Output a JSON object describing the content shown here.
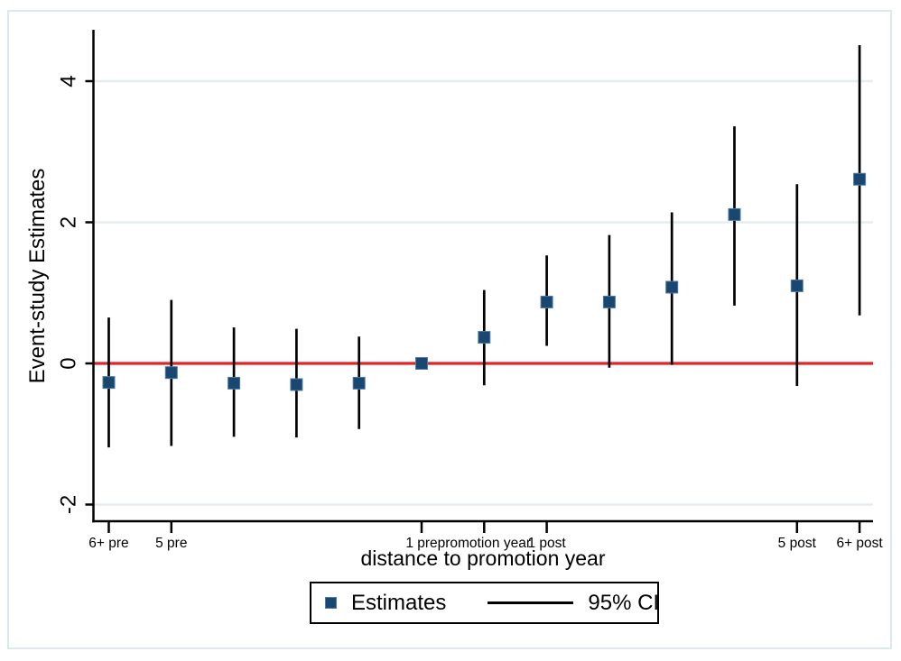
{
  "chart_data": {
    "type": "scatter",
    "title": "",
    "xlabel": "distance to promotion year",
    "ylabel": "Event-study Estimates",
    "ylim": [
      -2.3,
      4.75
    ],
    "grid": "horizontal-light",
    "zero_line_value": 0,
    "yticks": [
      {
        "value": 4,
        "label": "4"
      },
      {
        "value": 2,
        "label": "2"
      },
      {
        "value": 0,
        "label": "0"
      },
      {
        "value": -2,
        "label": "-2"
      }
    ],
    "xticks": [
      {
        "index": 0,
        "label": "6+ pre"
      },
      {
        "index": 1,
        "label": "5 pre"
      },
      {
        "index": 5,
        "label": "1 pre"
      },
      {
        "index": 6,
        "label": "promotion year"
      },
      {
        "index": 7,
        "label": "1 post"
      },
      {
        "index": 11,
        "label": "5 post"
      },
      {
        "index": 12,
        "label": "6+ post"
      }
    ],
    "points": [
      {
        "label": "6+ pre",
        "estimate": -0.27,
        "ci_low": -1.19,
        "ci_high": 0.65
      },
      {
        "label": "5 pre",
        "estimate": -0.13,
        "ci_low": -1.17,
        "ci_high": 0.9
      },
      {
        "label": "",
        "estimate": -0.28,
        "ci_low": -1.04,
        "ci_high": 0.51
      },
      {
        "label": "",
        "estimate": -0.3,
        "ci_low": -1.05,
        "ci_high": 0.49
      },
      {
        "label": "",
        "estimate": -0.28,
        "ci_low": -0.93,
        "ci_high": 0.38
      },
      {
        "label": "1 pre",
        "estimate": 0.0,
        "ci_low": null,
        "ci_high": null
      },
      {
        "label": "promotion year",
        "estimate": 0.37,
        "ci_low": -0.31,
        "ci_high": 1.04
      },
      {
        "label": "1 post",
        "estimate": 0.87,
        "ci_low": 0.25,
        "ci_high": 1.53
      },
      {
        "label": "",
        "estimate": 0.87,
        "ci_low": -0.06,
        "ci_high": 1.82
      },
      {
        "label": "",
        "estimate": 1.08,
        "ci_low": -0.02,
        "ci_high": 2.14
      },
      {
        "label": "",
        "estimate": 2.11,
        "ci_low": 0.82,
        "ci_high": 3.36
      },
      {
        "label": "5 post",
        "estimate": 1.1,
        "ci_low": -0.32,
        "ci_high": 2.54
      },
      {
        "label": "6+ post",
        "estimate": 2.61,
        "ci_low": 0.68,
        "ci_high": 4.51
      }
    ],
    "legend": {
      "estimates_label": "Estimates",
      "ci_label": "95% CI",
      "position": "bottom-center"
    },
    "colors": {
      "marker_fill": "#1a476f",
      "marker_edge": "#4d7aa8",
      "ci_line": "#000000",
      "zero_line": "#e02528",
      "gridline": "#e4eef0",
      "axis": "#000000",
      "frame_border": "#dbe8ec",
      "background": "#ffffff"
    }
  }
}
